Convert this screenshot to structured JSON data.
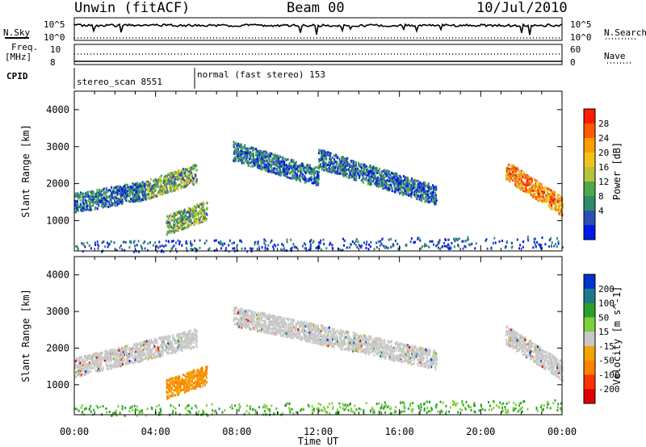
{
  "header": {
    "title": "Unwin (fitACF)",
    "beam": "Beam 00",
    "date": "10/Jul/2010"
  },
  "top_panels": {
    "nsky_label": "N.Sky",
    "nsearch_label": "N.Search",
    "nsky_ticks": [
      "10^5",
      "10^0"
    ],
    "nsearch_ticks": [
      "10^5",
      "10^0"
    ],
    "freq_label_top": "Freq.",
    "freq_label_unit": "[MHz]",
    "freq_ticks": [
      "10",
      "8"
    ],
    "nave_label": "Nave",
    "nave_ticks": [
      "60",
      "0"
    ],
    "cpid_label": "CPID",
    "cpid_segments": [
      {
        "label": "stereo_scan 8551",
        "start_hour": 0
      },
      {
        "label": "normal (fast stereo) 153",
        "start_hour": 6
      }
    ]
  },
  "chart_data": [
    {
      "type": "heatmap",
      "name": "power",
      "ylabel": "Slant Range [km]",
      "xlabel": "Time UT",
      "xlim_hours": [
        0,
        24
      ],
      "ylim": [
        180,
        4500
      ],
      "x_tick_labels": [
        "00:00",
        "04:00",
        "08:00",
        "12:00",
        "16:00",
        "20:00",
        "00:00"
      ],
      "y_tick_labels": [
        "1000",
        "2000",
        "3000",
        "4000"
      ],
      "colorbar": {
        "label": "Power [dB]",
        "tick_labels": [
          "4",
          "8",
          "12",
          "16",
          "20",
          "24",
          "28"
        ],
        "colors": [
          "#0018e8",
          "#2a4fb8",
          "#2f8c6a",
          "#4fa84a",
          "#b7c43a",
          "#f2c21c",
          "#ff9c00",
          "#ff5a00",
          "#ff1a00"
        ]
      },
      "features": [
        {
          "region": "band",
          "x": [
            0.0,
            3.5
          ],
          "y_start": 1500,
          "y_end": 1850,
          "level": "low-mid"
        },
        {
          "region": "band",
          "x": [
            3.5,
            6.0
          ],
          "y_start": 1850,
          "y_end": 2300,
          "level": "mid"
        },
        {
          "region": "band",
          "x": [
            4.5,
            6.5
          ],
          "y_start": 900,
          "y_end": 1300,
          "level": "mid"
        },
        {
          "region": "band",
          "x": [
            7.8,
            12.0
          ],
          "y_start": 2900,
          "y_end": 2200,
          "level": "low-mid"
        },
        {
          "region": "band",
          "x": [
            12.0,
            17.8
          ],
          "y_start": 2700,
          "y_end": 1700,
          "level": "low-mid"
        },
        {
          "region": "band",
          "x": [
            21.2,
            24.0
          ],
          "y_start": 2400,
          "y_end": 1400,
          "level": "high"
        },
        {
          "region": "ground-scatter",
          "x": [
            0.0,
            24.0
          ],
          "y_start": 300,
          "y_end": 450,
          "level": "low"
        }
      ]
    },
    {
      "type": "heatmap",
      "name": "velocity",
      "ylabel": "Slant Range [km]",
      "xlabel": "Time UT",
      "xlim_hours": [
        0,
        24
      ],
      "ylim": [
        180,
        4500
      ],
      "x_tick_labels": [
        "00:00",
        "04:00",
        "08:00",
        "12:00",
        "16:00",
        "20:00",
        "00:00"
      ],
      "y_tick_labels": [
        "1000",
        "2000",
        "3000",
        "4000"
      ],
      "colorbar": {
        "label": "Velocity [m s^-1]",
        "tick_labels": [
          "200",
          "100",
          "50",
          "15",
          "-15",
          "-50",
          "-100",
          "-200"
        ],
        "colors": [
          "#0033cc",
          "#1a7a8a",
          "#2aa02a",
          "#7cd03c",
          "#c8c8c8",
          "#f2a500",
          "#ff8000",
          "#ff3300",
          "#e00000"
        ]
      },
      "features": [
        {
          "region": "band",
          "x": [
            0.0,
            6.0
          ],
          "y_start": 1500,
          "y_end": 2300,
          "level": "grey (near 0)"
        },
        {
          "region": "band",
          "x": [
            4.5,
            6.5
          ],
          "y_start": 900,
          "y_end": 1300,
          "level": "-50 to -100"
        },
        {
          "region": "band",
          "x": [
            7.8,
            17.8
          ],
          "y_start": 2900,
          "y_end": 1700,
          "level": "grey (near 0)"
        },
        {
          "region": "band",
          "x": [
            21.2,
            24.0
          ],
          "y_start": 2400,
          "y_end": 1400,
          "level": "grey (near 0)"
        },
        {
          "region": "ground-scatter",
          "x": [
            0.0,
            24.0
          ],
          "y_start": 300,
          "y_end": 450,
          "level": "15 to 50"
        }
      ]
    }
  ]
}
